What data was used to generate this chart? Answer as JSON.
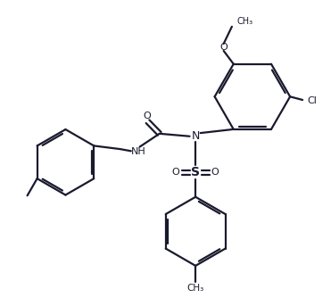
{
  "bg_color": "#ffffff",
  "line_color": "#1a1a2e",
  "line_width": 1.6,
  "figsize": [
    3.71,
    3.43
  ],
  "dpi": 100,
  "xlim": [
    0,
    10
  ],
  "ylim": [
    0,
    9.26
  ]
}
